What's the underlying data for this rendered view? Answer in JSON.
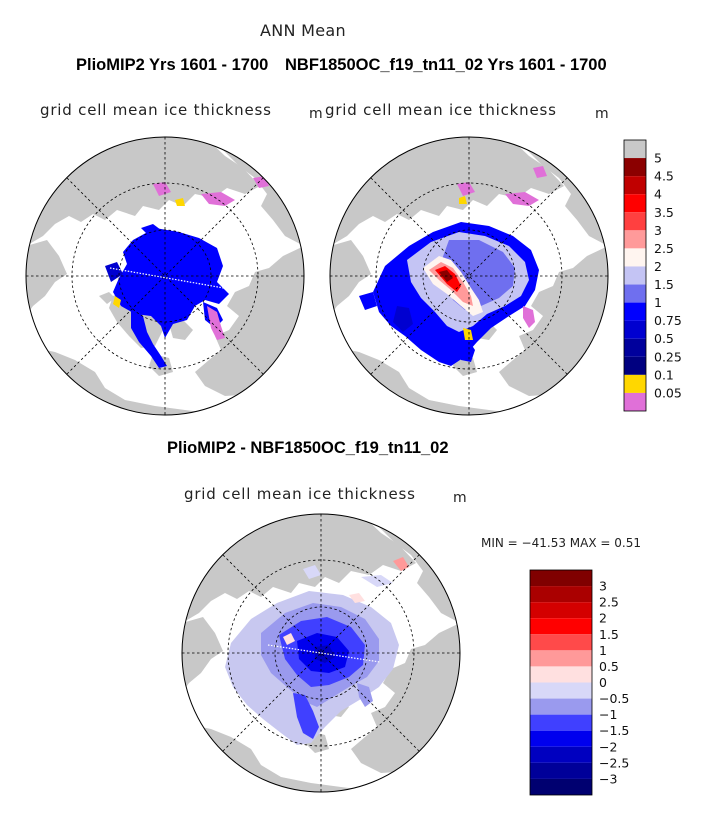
{
  "figure": {
    "title": "ANN Mean",
    "panel_left_header": "PlioMIP2  Yrs 1601 - 1700",
    "panel_right_header": "NBF1850OC_f19_tn11_02  Yrs 1601 - 1700",
    "diff_header": "PlioMIP2 - NBF1850OC_f19_tn11_02",
    "variable_label": "grid cell mean ice thickness",
    "unit": "m",
    "minmax_text": "MIN =  −41.53  MAX =      0.51"
  },
  "colorbar_top": {
    "labels": [
      "5",
      "4.5",
      "4",
      "3.5",
      "3",
      "2.5",
      "2",
      "1.5",
      "1",
      "0.75",
      "0.5",
      "0.25",
      "0.1",
      "0.05"
    ],
    "colors": [
      "#c8c8c8",
      "#8b0000",
      "#c00000",
      "#ff0000",
      "#ff4040",
      "#ff9a9a",
      "#fff5f0",
      "#c4c4f4",
      "#6f6fef",
      "#0000ff",
      "#0000d0",
      "#00009c",
      "#000080",
      "#ffd700",
      "#e070d8"
    ]
  },
  "colorbar_diff": {
    "labels": [
      "3",
      "2.5",
      "2",
      "1.5",
      "1",
      "0.5",
      "0",
      "−0.5",
      "−1",
      "−1.5",
      "−2",
      "−2.5",
      "−3"
    ],
    "colors": [
      "#800000",
      "#aa0000",
      "#d40000",
      "#ff0000",
      "#ff4a4a",
      "#ff9999",
      "#ffe0e0",
      "#d8d8f8",
      "#9a9aee",
      "#4040ff",
      "#0000ee",
      "#0000c0",
      "#000099",
      "#000070"
    ]
  },
  "colors": {
    "land": "#c8c8c8",
    "ice_left": "#0000ff",
    "ice_right_thin": "#c4c4f4",
    "ice_right_thick": "#ff4040",
    "diff_negative": "#4040ff",
    "diff_light": "#c8c8f0"
  }
}
